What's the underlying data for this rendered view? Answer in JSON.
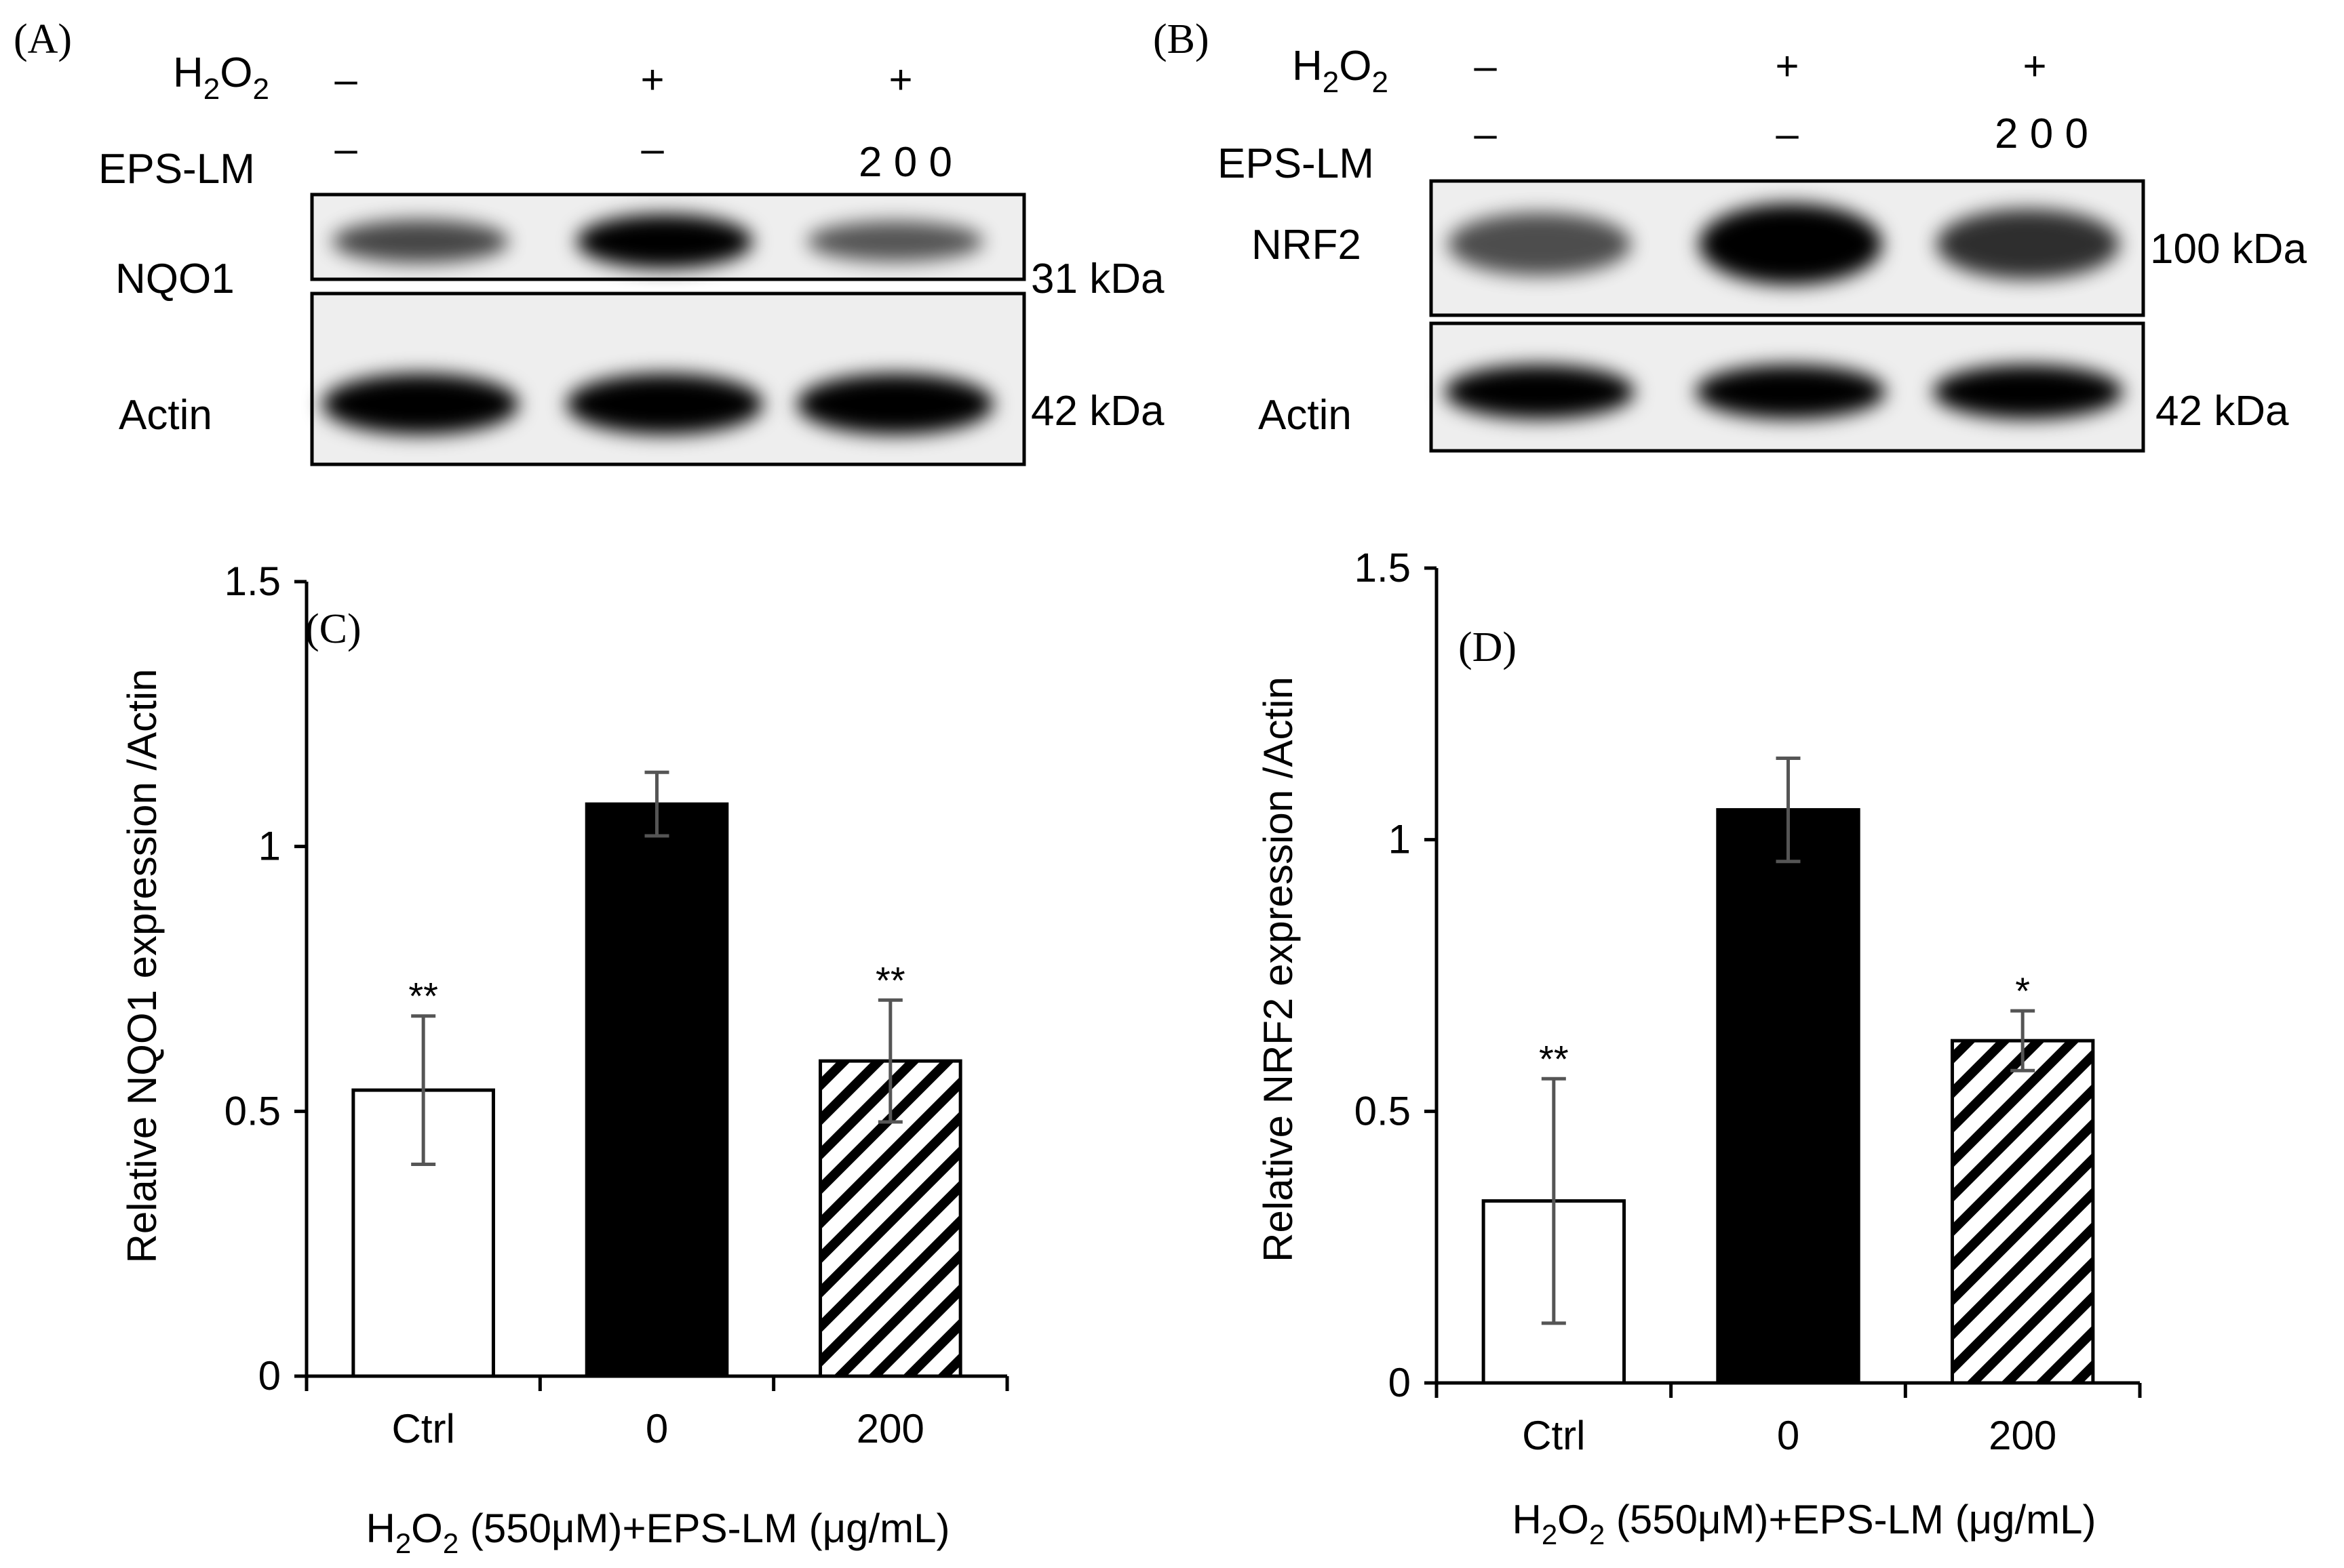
{
  "panels": {
    "A": {
      "letter": "(A)",
      "h2o2_label": {
        "base": "H",
        "sub1": "2",
        "mid": "O",
        "sub2": "2"
      },
      "h2o2_signs": [
        "–",
        "+",
        "+"
      ],
      "eps_label": "EPS-LM",
      "eps_values": [
        "–",
        "–",
        "2 0 0"
      ],
      "blots": [
        {
          "protein": "NQO1",
          "size": "31 kDa",
          "intensity": [
            0.55,
            1.0,
            0.45
          ]
        },
        {
          "protein": "Actin",
          "size": "42 kDa",
          "intensity": [
            1.0,
            1.0,
            1.0
          ]
        }
      ]
    },
    "B": {
      "letter": "(B)",
      "h2o2_label": {
        "base": "H",
        "sub1": "2",
        "mid": "O",
        "sub2": "2"
      },
      "h2o2_signs": [
        "–",
        "+",
        "+"
      ],
      "eps_label": "EPS-LM",
      "eps_values": [
        "–",
        "–",
        "2 0 0"
      ],
      "blots": [
        {
          "protein": "NRF2",
          "size": "100 kDa",
          "intensity": [
            0.5,
            1.0,
            0.7
          ]
        },
        {
          "protein": "Actin",
          "size": "42 kDa",
          "intensity": [
            1.0,
            1.0,
            1.0
          ]
        }
      ]
    }
  },
  "chart_data": [
    {
      "panel": "(C)",
      "type": "bar",
      "categories": [
        "Ctrl",
        "0",
        "200"
      ],
      "values": [
        0.54,
        1.08,
        0.595
      ],
      "errors": [
        0.14,
        0.06,
        0.115
      ],
      "significance": [
        "**",
        "",
        "**"
      ],
      "fills": [
        "white",
        "black",
        "hatched"
      ],
      "ylabel": "Relative NQO1 expression /Actin",
      "xlabel": {
        "prefix": "H",
        "sub1": "2",
        "mid": "O",
        "sub2": "2",
        "suffix": " (550μM)+EPS-LM (μg/mL)"
      },
      "ylim": [
        0,
        1.5
      ],
      "yticks": [
        "0",
        "0.5",
        "1",
        "1.5"
      ],
      "tick_values": [
        0,
        0.5,
        1,
        1.5
      ]
    },
    {
      "panel": "(D)",
      "type": "bar",
      "categories": [
        "Ctrl",
        "0",
        "200"
      ],
      "values": [
        0.335,
        1.055,
        0.63
      ],
      "errors": [
        0.225,
        0.095,
        0.055
      ],
      "significance": [
        "**",
        "",
        "*"
      ],
      "fills": [
        "white",
        "black",
        "hatched"
      ],
      "ylabel": "Relative NRF2 expression /Actin",
      "xlabel": {
        "prefix": "H",
        "sub1": "2",
        "mid": "O",
        "sub2": "2",
        "suffix": " (550μM)+EPS-LM (μg/mL)"
      },
      "ylim": [
        0,
        1.5
      ],
      "yticks": [
        "0",
        "0.5",
        "1",
        "1.5"
      ],
      "tick_values": [
        0,
        0.5,
        1,
        1.5
      ]
    }
  ],
  "colors": {
    "bar_dark": "#000000",
    "bar_light": "#ffffff",
    "error_bar": "#555555",
    "axis": "#000000"
  }
}
